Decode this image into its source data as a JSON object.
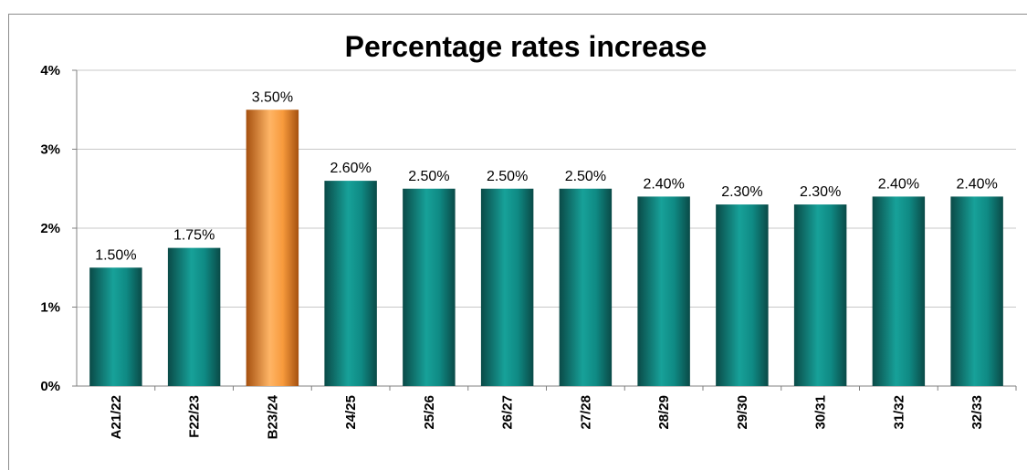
{
  "chart_data": {
    "type": "bar",
    "title": "Percentage rates increase",
    "xlabel": "",
    "ylabel": "",
    "categories": [
      "A21/22",
      "F22/23",
      "B23/24",
      "24/25",
      "25/26",
      "26/27",
      "27/28",
      "28/29",
      "29/30",
      "30/31",
      "31/32",
      "32/33"
    ],
    "values": [
      1.5,
      1.75,
      3.5,
      2.6,
      2.5,
      2.5,
      2.5,
      2.4,
      2.3,
      2.3,
      2.4,
      2.4
    ],
    "data_labels": [
      "1.50%",
      "1.75%",
      "3.50%",
      "2.60%",
      "2.50%",
      "2.50%",
      "2.50%",
      "2.40%",
      "2.30%",
      "2.30%",
      "2.40%",
      "2.40%"
    ],
    "ylim": [
      0,
      4
    ],
    "yticks": [
      0,
      1,
      2,
      3,
      4
    ],
    "ytick_labels": [
      "0%",
      "1%",
      "2%",
      "3%",
      "4%"
    ],
    "highlight_index": 2,
    "colors": {
      "bar": "#0f8a84",
      "bar_dark": "#0a4a47",
      "bar_light": "#17a199",
      "highlight": "#f79a3c",
      "highlight_dark": "#a5500f",
      "highlight_light": "#ffb566",
      "grid": "#c8c8c8"
    },
    "grid": true,
    "legend": "none"
  }
}
